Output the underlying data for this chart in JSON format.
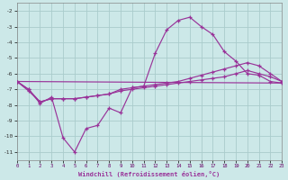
{
  "bg_color": "#cce8e8",
  "grid_color": "#aacccc",
  "line_color": "#993399",
  "xlim": [
    0,
    23
  ],
  "ylim": [
    -11.5,
    -1.5
  ],
  "yticks": [
    -11,
    -10,
    -9,
    -8,
    -7,
    -6,
    -5,
    -4,
    -3,
    -2
  ],
  "xticks": [
    0,
    1,
    2,
    3,
    4,
    5,
    6,
    7,
    8,
    9,
    10,
    11,
    12,
    13,
    14,
    15,
    16,
    17,
    18,
    19,
    20,
    21,
    22,
    23
  ],
  "xlabel": "Windchill (Refroidissement éolien,°C)",
  "line1_x": [
    0,
    1,
    2,
    3,
    4,
    5,
    6,
    7,
    8,
    9,
    10,
    11,
    12,
    13,
    14,
    15,
    16,
    17,
    18,
    19,
    20,
    21,
    22,
    23
  ],
  "line1_y": [
    -6.5,
    -7.0,
    -7.9,
    -7.5,
    -10.1,
    -11.0,
    -9.5,
    -9.3,
    -8.2,
    -8.5,
    -6.9,
    -6.8,
    -4.7,
    -3.2,
    -2.6,
    -2.4,
    -3.0,
    -3.5,
    -4.6,
    -5.2,
    -6.0,
    -6.1,
    -6.5,
    -6.6
  ],
  "line2_x": [
    0,
    1,
    2,
    3,
    4,
    5,
    6,
    7,
    8,
    9,
    10,
    11,
    12,
    13,
    14,
    15,
    16,
    17,
    18,
    19,
    20,
    21,
    22,
    23
  ],
  "line2_y": [
    -6.5,
    -7.0,
    -7.8,
    -7.6,
    -7.6,
    -7.6,
    -7.5,
    -7.4,
    -7.3,
    -7.0,
    -6.9,
    -6.8,
    -6.7,
    -6.6,
    -6.5,
    -6.3,
    -6.1,
    -5.9,
    -5.7,
    -5.5,
    -5.3,
    -5.5,
    -6.0,
    -6.5
  ],
  "line3_x": [
    0,
    1,
    2,
    3,
    4,
    5,
    6,
    7,
    8,
    9,
    10,
    11,
    12,
    13,
    14,
    15,
    16,
    17,
    18,
    19,
    20,
    21,
    22,
    23
  ],
  "line3_y": [
    -6.5,
    -7.1,
    -7.8,
    -7.6,
    -7.6,
    -7.6,
    -7.5,
    -7.4,
    -7.3,
    -7.1,
    -7.0,
    -6.9,
    -6.8,
    -6.7,
    -6.6,
    -6.5,
    -6.4,
    -6.3,
    -6.2,
    -6.0,
    -5.8,
    -6.0,
    -6.2,
    -6.5
  ],
  "line4_x": [
    0,
    23
  ],
  "line4_y": [
    -6.5,
    -6.6
  ]
}
